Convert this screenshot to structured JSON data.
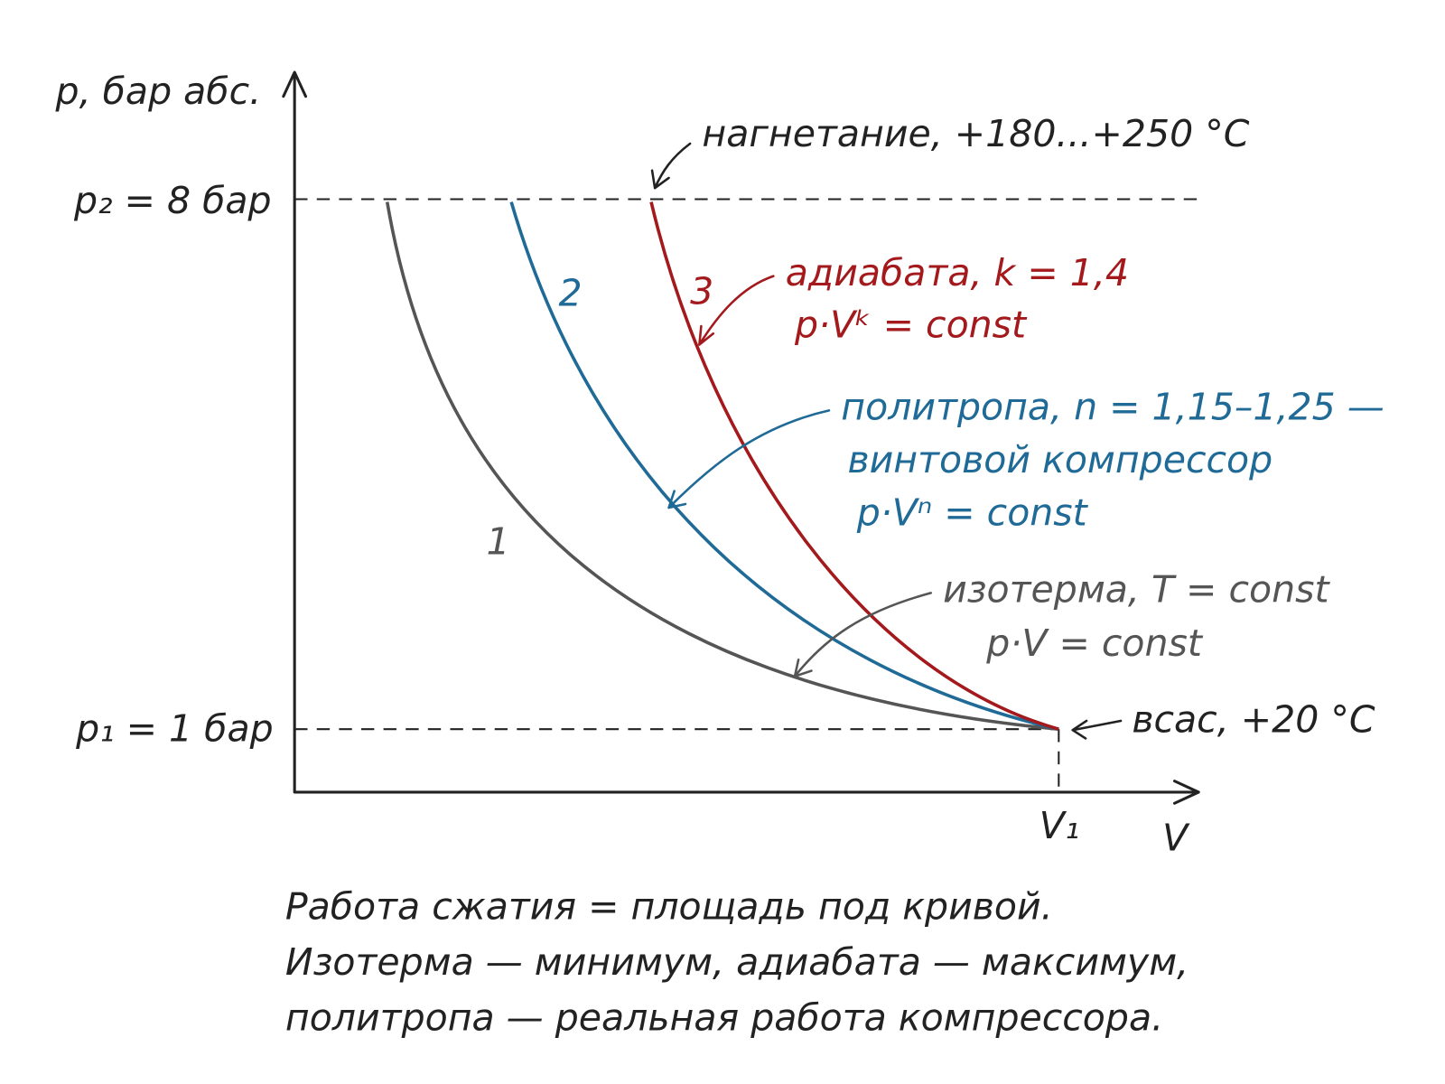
{
  "axes": {
    "y_label": "p, бар абс.",
    "x_label": "V",
    "v1_label": "V₁",
    "p2_label": "p₂ = 8 бар",
    "p1_label": "p₁ = 1 бар"
  },
  "discharge": "нагнетание, +180...+250 °C",
  "suction": "всас, +20 °C",
  "curves": [
    {
      "number": "1",
      "color": "#555555",
      "lines": [
        "изотерма, T = const",
        "p·V = const"
      ]
    },
    {
      "number": "2",
      "color": "#1f6a96",
      "lines": [
        "политропа, n = 1,15–1,25 —",
        "винтовой компрессор",
        "p·Vⁿ = const"
      ]
    },
    {
      "number": "3",
      "color": "#a3191c",
      "lines": [
        "адиабата, k = 1,4",
        "p·Vᵏ = const"
      ]
    }
  ],
  "caption": [
    "Работа сжатия = площадь под кривой.",
    "Изотерма — минимум, адиабата — максимум,",
    "политропа — реальная работа компрессора."
  ]
}
